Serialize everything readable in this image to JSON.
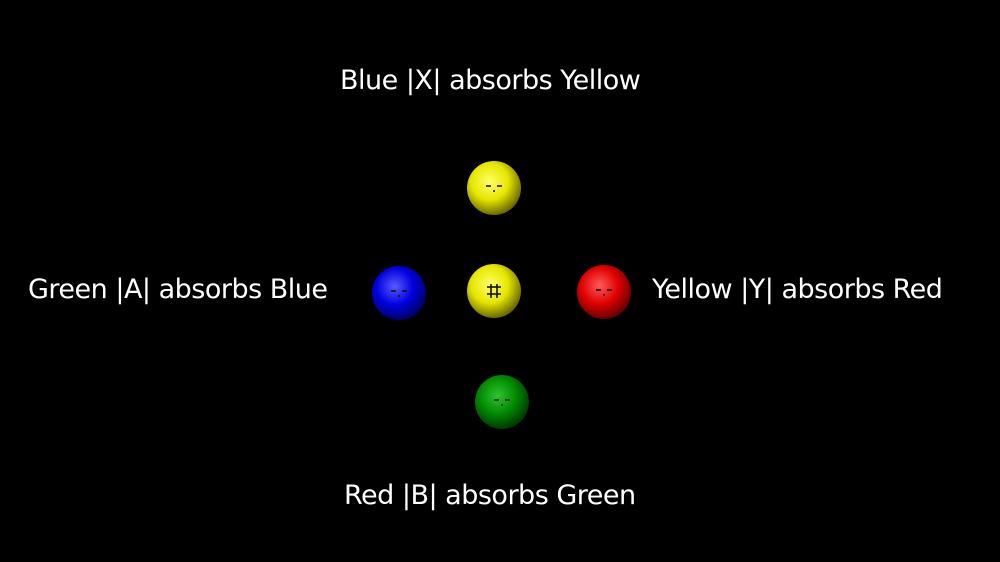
{
  "labels": {
    "top": "Blue |X| absorbs Yellow",
    "left": "Green |A| absorbs Blue",
    "right": "Yellow |Y| absorbs Red",
    "bottom": "Red |B| absorbs Green"
  },
  "orbs": {
    "top": {
      "color": "yellow",
      "base": "#e6e600",
      "light": "#ffff66",
      "dark": "#6b6b00",
      "face": "-.-"
    },
    "center": {
      "color": "yellow",
      "base": "#e6e600",
      "light": "#ffff66",
      "dark": "#6b6b00",
      "face": "#"
    },
    "left": {
      "color": "blue",
      "base": "#0000e0",
      "light": "#5a5aff",
      "dark": "#00006b",
      "face": "-.-"
    },
    "right": {
      "color": "red",
      "base": "#e00000",
      "light": "#ff5a5a",
      "dark": "#6b0000",
      "face": "-.-"
    },
    "bottom": {
      "color": "green",
      "base": "#008a00",
      "light": "#2fc42f",
      "dark": "#003a00",
      "face": "-.-"
    }
  }
}
